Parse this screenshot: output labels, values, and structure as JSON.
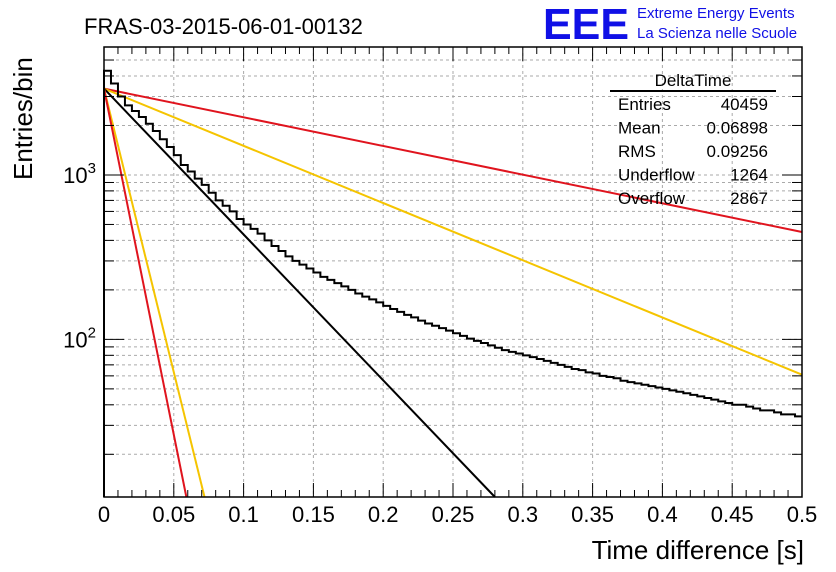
{
  "chart_data": {
    "type": "line",
    "title": "FRAS-03-2015-06-01-00132",
    "xlabel": "Time difference [s]",
    "ylabel": "Entries/bin",
    "xlim": [
      0,
      0.5
    ],
    "ylim": [
      11,
      6000
    ],
    "yscale": "log",
    "grid": true,
    "x_ticks": [
      0,
      0.05,
      0.1,
      0.15,
      0.2,
      0.25,
      0.3,
      0.35,
      0.4,
      0.45,
      0.5
    ],
    "x_tick_labels": [
      "0",
      "0.05",
      "0.1",
      "0.15",
      "0.2",
      "0.25",
      "0.3",
      "0.35",
      "0.4",
      "0.45",
      "0.5"
    ],
    "y_major_ticks": [
      1000,
      100
    ],
    "y_tick_labels": [
      {
        "base": "10",
        "exp": "3"
      },
      {
        "base": "10",
        "exp": "2"
      }
    ],
    "histogram": {
      "name": "DeltaTime",
      "bin_width": 0.005,
      "color": "#000000",
      "values": [
        4300,
        3600,
        3000,
        2650,
        2450,
        2250,
        2050,
        1850,
        1650,
        1480,
        1320,
        1150,
        1050,
        950,
        870,
        780,
        700,
        650,
        600,
        540,
        500,
        470,
        440,
        400,
        370,
        345,
        320,
        300,
        285,
        270,
        255,
        240,
        230,
        220,
        210,
        200,
        190,
        182,
        175,
        168,
        160,
        153,
        147,
        141,
        136,
        130,
        125,
        121,
        117,
        113,
        109,
        105,
        101,
        98,
        95,
        92,
        89,
        86,
        84,
        82,
        80,
        78,
        76,
        74,
        72,
        70,
        68,
        66,
        65,
        63,
        62,
        60,
        59,
        58,
        56,
        55,
        54,
        53,
        52,
        51,
        50,
        49,
        48,
        47,
        46,
        45,
        44,
        43,
        42,
        41,
        40,
        40,
        39,
        38,
        37,
        37,
        36,
        35,
        35,
        34
      ]
    },
    "fit_lines": [
      {
        "color": "#e0141e",
        "x": [
          0,
          0.5
        ],
        "y": [
          3350,
          450
        ]
      },
      {
        "color": "#f5c400",
        "x": [
          0,
          0.5
        ],
        "y": [
          3350,
          61
        ]
      },
      {
        "color": "#000000",
        "x": [
          0,
          0.28
        ],
        "y": [
          3350,
          11
        ]
      },
      {
        "color": "#f5c400",
        "x": [
          0,
          0.072
        ],
        "y": [
          3350,
          11
        ]
      },
      {
        "color": "#e0141e",
        "x": [
          0,
          0.059
        ],
        "y": [
          3350,
          11
        ]
      }
    ],
    "stats_box": {
      "title": "DeltaTime",
      "rows": [
        {
          "label": "Entries",
          "value": "40459"
        },
        {
          "label": "Mean",
          "value": "0.06898"
        },
        {
          "label": "RMS",
          "value": "0.09256"
        },
        {
          "label": "Underflow",
          "value": "1264"
        },
        {
          "label": "Overflow",
          "value": "2867"
        }
      ]
    }
  },
  "logo": {
    "text": "EEE",
    "line1": "Extreme Energy Events",
    "line2": "La Scienza nelle Scuole",
    "color": "#1010e6"
  }
}
